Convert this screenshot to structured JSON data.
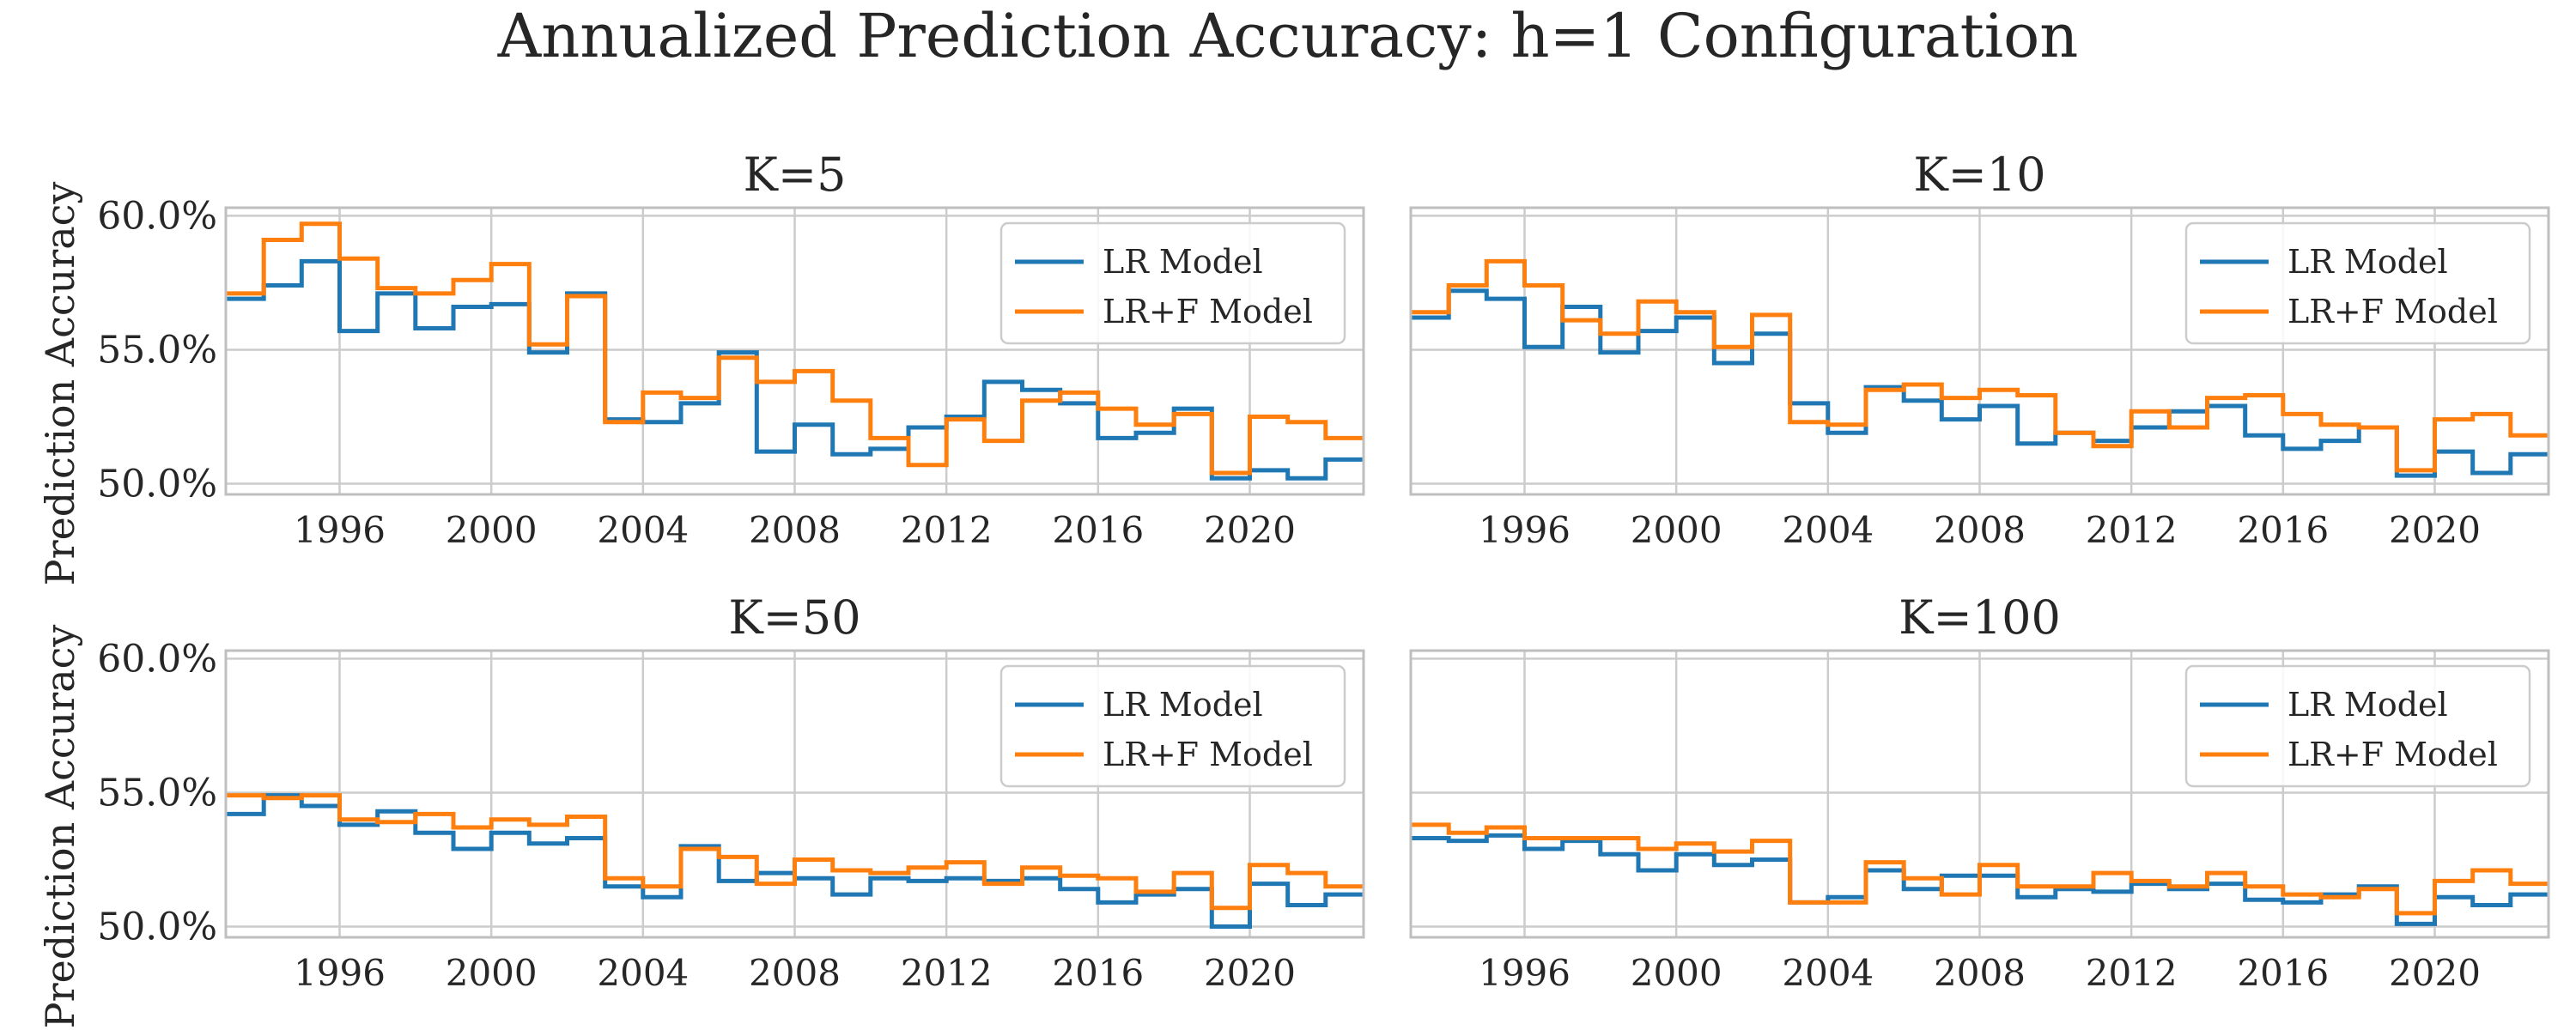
{
  "figure_title": "Annualized Prediction Accuracy: h=1 Configuration",
  "colors": {
    "lr": "#1f77b4",
    "lrf": "#ff7f0e",
    "grid": "#cccccc",
    "axes": "#bfbfbf",
    "text": "#262626"
  },
  "ylabel": "Prediction Accuracy",
  "legend_labels": [
    "LR Model",
    "LR+F Model"
  ],
  "x_ticks": [
    "1996",
    "2000",
    "2004",
    "2008",
    "2012",
    "2016",
    "2020"
  ],
  "y_ticks": [
    "50.0%",
    "55.0%",
    "60.0%"
  ],
  "chart_data": [
    {
      "type": "line",
      "step": "post",
      "title": "K=5",
      "x": [
        1993,
        1994,
        1995,
        1996,
        1997,
        1998,
        1999,
        2000,
        2001,
        2002,
        2003,
        2004,
        2005,
        2006,
        2007,
        2008,
        2009,
        2010,
        2011,
        2012,
        2013,
        2014,
        2015,
        2016,
        2017,
        2018,
        2019,
        2020,
        2021,
        2022,
        2023
      ],
      "xlim": [
        1993,
        2023
      ],
      "ylim": [
        49.6,
        60.3
      ],
      "legend": "upper right",
      "grid": true,
      "series": [
        {
          "name": "LR Model",
          "values": [
            56.9,
            57.4,
            58.3,
            55.7,
            57.1,
            55.8,
            56.6,
            56.7,
            54.9,
            57.1,
            52.4,
            52.3,
            53.0,
            54.9,
            51.2,
            52.2,
            51.1,
            51.3,
            52.1,
            52.5,
            53.8,
            53.5,
            53.0,
            51.7,
            51.9,
            52.8,
            50.2,
            50.5,
            50.2,
            50.9,
            50.9
          ]
        },
        {
          "name": "LR+F Model",
          "values": [
            57.1,
            59.1,
            59.7,
            58.4,
            57.3,
            57.1,
            57.6,
            58.2,
            55.2,
            57.0,
            52.3,
            53.4,
            53.2,
            54.7,
            53.8,
            54.2,
            53.1,
            51.7,
            50.7,
            52.4,
            51.6,
            53.1,
            53.4,
            52.8,
            52.2,
            52.6,
            50.4,
            52.5,
            52.3,
            51.7,
            51.7
          ]
        }
      ]
    },
    {
      "type": "line",
      "step": "post",
      "title": "K=10",
      "x": [
        1993,
        1994,
        1995,
        1996,
        1997,
        1998,
        1999,
        2000,
        2001,
        2002,
        2003,
        2004,
        2005,
        2006,
        2007,
        2008,
        2009,
        2010,
        2011,
        2012,
        2013,
        2014,
        2015,
        2016,
        2017,
        2018,
        2019,
        2020,
        2021,
        2022,
        2023
      ],
      "xlim": [
        1993,
        2023
      ],
      "ylim": [
        49.6,
        60.3
      ],
      "legend": "upper right",
      "grid": true,
      "series": [
        {
          "name": "LR Model",
          "values": [
            56.2,
            57.2,
            56.9,
            55.1,
            56.6,
            54.9,
            55.7,
            56.2,
            54.5,
            55.6,
            53.0,
            51.9,
            53.6,
            53.1,
            52.4,
            52.9,
            51.5,
            51.9,
            51.6,
            52.1,
            52.7,
            52.9,
            51.8,
            51.3,
            51.6,
            52.1,
            50.3,
            51.2,
            50.4,
            51.1,
            51.1
          ]
        },
        {
          "name": "LR+F Model",
          "values": [
            56.4,
            57.4,
            58.3,
            57.4,
            56.1,
            55.6,
            56.8,
            56.4,
            55.1,
            56.3,
            52.3,
            52.2,
            53.5,
            53.7,
            53.2,
            53.5,
            53.3,
            51.9,
            51.4,
            52.7,
            52.1,
            53.2,
            53.3,
            52.6,
            52.2,
            52.1,
            50.5,
            52.4,
            52.6,
            51.8,
            51.8
          ]
        }
      ]
    },
    {
      "type": "line",
      "step": "post",
      "title": "K=50",
      "x": [
        1993,
        1994,
        1995,
        1996,
        1997,
        1998,
        1999,
        2000,
        2001,
        2002,
        2003,
        2004,
        2005,
        2006,
        2007,
        2008,
        2009,
        2010,
        2011,
        2012,
        2013,
        2014,
        2015,
        2016,
        2017,
        2018,
        2019,
        2020,
        2021,
        2022,
        2023
      ],
      "xlim": [
        1993,
        2023
      ],
      "ylim": [
        49.6,
        60.3
      ],
      "legend": "upper right",
      "grid": true,
      "series": [
        {
          "name": "LR Model",
          "values": [
            54.2,
            54.9,
            54.5,
            53.8,
            54.3,
            53.5,
            52.9,
            53.5,
            53.1,
            53.3,
            51.5,
            51.1,
            53.0,
            51.7,
            52.0,
            51.8,
            51.2,
            51.8,
            51.7,
            51.8,
            51.7,
            51.8,
            51.4,
            50.9,
            51.2,
            51.4,
            50.0,
            51.6,
            50.8,
            51.2,
            51.2
          ]
        },
        {
          "name": "LR+F Model",
          "values": [
            54.9,
            54.8,
            54.9,
            54.0,
            53.9,
            54.2,
            53.7,
            54.0,
            53.8,
            54.1,
            51.8,
            51.5,
            52.9,
            52.6,
            51.6,
            52.5,
            52.1,
            52.0,
            52.2,
            52.4,
            51.6,
            52.2,
            51.9,
            51.8,
            51.3,
            52.0,
            50.7,
            52.3,
            52.0,
            51.5,
            51.5
          ]
        }
      ]
    },
    {
      "type": "line",
      "step": "post",
      "title": "K=100",
      "x": [
        1993,
        1994,
        1995,
        1996,
        1997,
        1998,
        1999,
        2000,
        2001,
        2002,
        2003,
        2004,
        2005,
        2006,
        2007,
        2008,
        2009,
        2010,
        2011,
        2012,
        2013,
        2014,
        2015,
        2016,
        2017,
        2018,
        2019,
        2020,
        2021,
        2022,
        2023
      ],
      "xlim": [
        1993,
        2023
      ],
      "ylim": [
        49.6,
        60.3
      ],
      "legend": "upper right",
      "grid": true,
      "series": [
        {
          "name": "LR Model",
          "values": [
            53.3,
            53.2,
            53.4,
            52.9,
            53.2,
            52.7,
            52.1,
            52.7,
            52.3,
            52.5,
            50.9,
            51.1,
            52.1,
            51.4,
            51.9,
            51.9,
            51.1,
            51.4,
            51.3,
            51.6,
            51.4,
            51.6,
            51.0,
            50.9,
            51.2,
            51.5,
            50.1,
            51.1,
            50.8,
            51.2,
            51.2
          ]
        },
        {
          "name": "LR+F Model",
          "values": [
            53.8,
            53.5,
            53.7,
            53.3,
            53.3,
            53.3,
            52.9,
            53.1,
            52.8,
            53.2,
            50.9,
            50.9,
            52.4,
            51.8,
            51.2,
            52.3,
            51.5,
            51.5,
            52.0,
            51.7,
            51.5,
            52.0,
            51.5,
            51.2,
            51.1,
            51.4,
            50.5,
            51.7,
            52.1,
            51.6,
            51.6
          ]
        }
      ]
    }
  ]
}
